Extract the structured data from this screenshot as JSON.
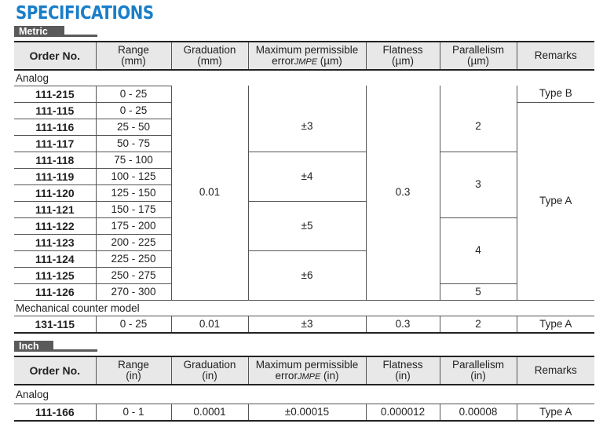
{
  "title": "SPECIFICATIONS",
  "metric": {
    "unit_label": "Metric",
    "headers": {
      "order_no": "Order No.",
      "range_1": "Range",
      "range_2": "(mm)",
      "grad_1": "Graduation",
      "grad_2": "(mm)",
      "mpe_1": "Maximum permissible",
      "mpe_2a": "error",
      "mpe_2sub": "JMPE",
      "mpe_2b": " (µm)",
      "flat_1": "Flatness",
      "flat_2": "(µm)",
      "par_1": "Parallelism",
      "par_2": "(µm)",
      "remarks": "Remarks"
    },
    "section_analog": "Analog",
    "rows": [
      {
        "order": "111-215",
        "range": "0 - 25"
      },
      {
        "order": "111-115",
        "range": "0 - 25"
      },
      {
        "order": "111-116",
        "range": "25 - 50"
      },
      {
        "order": "111-117",
        "range": "50 - 75"
      },
      {
        "order": "111-118",
        "range": "75 - 100"
      },
      {
        "order": "111-119",
        "range": "100 - 125"
      },
      {
        "order": "111-120",
        "range": "125 - 150"
      },
      {
        "order": "111-121",
        "range": "150 - 175"
      },
      {
        "order": "111-122",
        "range": "175 - 200"
      },
      {
        "order": "111-123",
        "range": "200 - 225"
      },
      {
        "order": "111-124",
        "range": "225 - 250"
      },
      {
        "order": "111-125",
        "range": "250 - 275"
      },
      {
        "order": "111-126",
        "range": "270 - 300"
      }
    ],
    "graduation": "0.01",
    "mpe": [
      "±3",
      "±4",
      "±5",
      "±6"
    ],
    "flatness": "0.3",
    "parallelism": [
      "2",
      "3",
      "4",
      "5"
    ],
    "remarks": [
      "Type B",
      "Type A"
    ],
    "section_mech": "Mechanical counter model",
    "mech_row": {
      "order": "131-115",
      "range": "0 - 25",
      "graduation": "0.01",
      "mpe": "±3",
      "flatness": "0.3",
      "parallelism": "2",
      "remarks": "Type A"
    }
  },
  "inch": {
    "unit_label": "Inch",
    "headers": {
      "order_no": "Order No.",
      "range_1": "Range",
      "range_2": "(in)",
      "grad_1": "Graduation",
      "grad_2": "(in)",
      "mpe_1": "Maximum permissible",
      "mpe_2a": "error",
      "mpe_2sub": "JMPE",
      "mpe_2b": " (in)",
      "flat_1": "Flatness",
      "flat_2": "(in)",
      "par_1": "Parallelism",
      "par_2": "(in)",
      "remarks": "Remarks"
    },
    "section_analog": "Analog",
    "row": {
      "order": "111-166",
      "range": "0 - 1",
      "graduation": "0.0001",
      "mpe": "±0.00015",
      "flatness": "0.000012",
      "parallelism": "0.00008",
      "remarks": "Type A"
    }
  }
}
